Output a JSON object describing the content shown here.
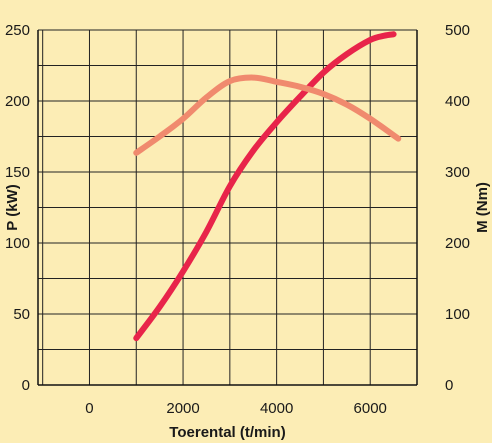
{
  "chart_data": {
    "type": "line",
    "background_color": "#fcedb5",
    "grid": true,
    "xlabel": "Toerental (t/min)",
    "ylabel_left": "P (kW)",
    "ylabel_right": "M (Nm)",
    "xlim": [
      -1100,
      7000
    ],
    "ylim_left": [
      0,
      250
    ],
    "ylim_right": [
      0,
      500
    ],
    "x_ticks": [
      0,
      2000,
      4000,
      6000
    ],
    "y_ticks_left": [
      0,
      50,
      100,
      150,
      200,
      250
    ],
    "y_ticks_right": [
      0,
      100,
      200,
      300,
      400,
      500
    ],
    "series": [
      {
        "axis": "left",
        "color": "#e8244a",
        "x": [
          1000,
          1500,
          2000,
          2500,
          3000,
          3500,
          4000,
          4500,
          5000,
          5500,
          6000,
          6300,
          6500
        ],
        "y": [
          33,
          55,
          80,
          108,
          140,
          165,
          185,
          203,
          220,
          233,
          243,
          246,
          247
        ]
      },
      {
        "axis": "right",
        "color": "#f08a6e",
        "x": [
          1000,
          1500,
          2000,
          2500,
          3000,
          3500,
          4000,
          4500,
          5000,
          5500,
          6000,
          6600
        ],
        "y": [
          327,
          350,
          375,
          405,
          428,
          433,
          427,
          420,
          410,
          395,
          375,
          347
        ]
      }
    ]
  }
}
